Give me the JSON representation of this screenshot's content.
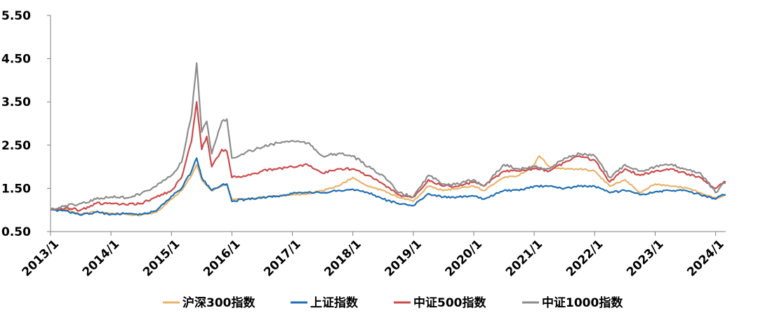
{
  "chart_data": {
    "type": "line",
    "title": "",
    "xlabel": "",
    "ylabel": "",
    "ylim": [
      0.5,
      5.5
    ],
    "xlim": [
      "2013-01",
      "2024-03"
    ],
    "y_ticks": [
      "0.50",
      "1.50",
      "2.50",
      "3.50",
      "4.50",
      "5.50"
    ],
    "x_ticks": [
      "2013/1",
      "2014/1",
      "2015/1",
      "2016/1",
      "2017/1",
      "2018/1",
      "2019/1",
      "2020/1",
      "2021/1",
      "2022/1",
      "2023/1",
      "2024/1"
    ],
    "grid": false,
    "legend_position": "bottom",
    "series": [
      {
        "name": "沪深300指数",
        "color": "#E9B36B",
        "points": [
          [
            "2013-01",
            1.0
          ],
          [
            "2013-04",
            1.02
          ],
          [
            "2013-07",
            0.9
          ],
          [
            "2013-10",
            0.96
          ],
          [
            "2014-01",
            0.92
          ],
          [
            "2014-04",
            0.9
          ],
          [
            "2014-07",
            0.88
          ],
          [
            "2014-10",
            0.95
          ],
          [
            "2015-01",
            1.25
          ],
          [
            "2015-03",
            1.45
          ],
          [
            "2015-05",
            1.8
          ],
          [
            "2015-06",
            2.05
          ],
          [
            "2015-07",
            1.7
          ],
          [
            "2015-09",
            1.45
          ],
          [
            "2015-11",
            1.55
          ],
          [
            "2015-12",
            1.6
          ],
          [
            "2016-01",
            1.25
          ],
          [
            "2016-04",
            1.25
          ],
          [
            "2016-07",
            1.3
          ],
          [
            "2016-10",
            1.32
          ],
          [
            "2017-01",
            1.35
          ],
          [
            "2017-04",
            1.38
          ],
          [
            "2017-07",
            1.45
          ],
          [
            "2017-10",
            1.55
          ],
          [
            "2018-01",
            1.75
          ],
          [
            "2018-04",
            1.55
          ],
          [
            "2018-07",
            1.45
          ],
          [
            "2018-10",
            1.3
          ],
          [
            "2019-01",
            1.2
          ],
          [
            "2019-04",
            1.55
          ],
          [
            "2019-07",
            1.45
          ],
          [
            "2019-10",
            1.5
          ],
          [
            "2020-01",
            1.55
          ],
          [
            "2020-03",
            1.45
          ],
          [
            "2020-07",
            1.75
          ],
          [
            "2020-10",
            1.8
          ],
          [
            "2021-01",
            2.05
          ],
          [
            "2021-02",
            2.25
          ],
          [
            "2021-04",
            2.0
          ],
          [
            "2021-07",
            1.95
          ],
          [
            "2021-10",
            1.95
          ],
          [
            "2022-01",
            1.9
          ],
          [
            "2022-04",
            1.55
          ],
          [
            "2022-07",
            1.7
          ],
          [
            "2022-10",
            1.4
          ],
          [
            "2023-01",
            1.6
          ],
          [
            "2023-04",
            1.55
          ],
          [
            "2023-07",
            1.52
          ],
          [
            "2023-10",
            1.4
          ],
          [
            "2024-01",
            1.28
          ],
          [
            "2024-02",
            1.3
          ],
          [
            "2024-03",
            1.35
          ]
        ]
      },
      {
        "name": "上证指数",
        "color": "#1F6FB4",
        "points": [
          [
            "2013-01",
            1.0
          ],
          [
            "2013-04",
            0.98
          ],
          [
            "2013-07",
            0.88
          ],
          [
            "2013-10",
            0.95
          ],
          [
            "2014-01",
            0.9
          ],
          [
            "2014-04",
            0.92
          ],
          [
            "2014-07",
            0.9
          ],
          [
            "2014-10",
            0.98
          ],
          [
            "2015-01",
            1.32
          ],
          [
            "2015-03",
            1.5
          ],
          [
            "2015-05",
            1.9
          ],
          [
            "2015-06",
            2.2
          ],
          [
            "2015-07",
            1.75
          ],
          [
            "2015-09",
            1.45
          ],
          [
            "2015-11",
            1.58
          ],
          [
            "2015-12",
            1.6
          ],
          [
            "2016-01",
            1.2
          ],
          [
            "2016-04",
            1.25
          ],
          [
            "2016-07",
            1.28
          ],
          [
            "2016-10",
            1.32
          ],
          [
            "2017-01",
            1.38
          ],
          [
            "2017-04",
            1.4
          ],
          [
            "2017-07",
            1.4
          ],
          [
            "2017-10",
            1.45
          ],
          [
            "2018-01",
            1.48
          ],
          [
            "2018-04",
            1.4
          ],
          [
            "2018-07",
            1.25
          ],
          [
            "2018-10",
            1.15
          ],
          [
            "2019-01",
            1.1
          ],
          [
            "2019-04",
            1.38
          ],
          [
            "2019-07",
            1.3
          ],
          [
            "2019-10",
            1.3
          ],
          [
            "2020-01",
            1.32
          ],
          [
            "2020-03",
            1.25
          ],
          [
            "2020-07",
            1.45
          ],
          [
            "2020-10",
            1.45
          ],
          [
            "2021-01",
            1.55
          ],
          [
            "2021-04",
            1.55
          ],
          [
            "2021-07",
            1.5
          ],
          [
            "2021-10",
            1.55
          ],
          [
            "2022-01",
            1.55
          ],
          [
            "2022-04",
            1.4
          ],
          [
            "2022-07",
            1.45
          ],
          [
            "2022-10",
            1.35
          ],
          [
            "2023-01",
            1.42
          ],
          [
            "2023-04",
            1.45
          ],
          [
            "2023-07",
            1.45
          ],
          [
            "2023-10",
            1.35
          ],
          [
            "2024-01",
            1.25
          ],
          [
            "2024-02",
            1.33
          ],
          [
            "2024-03",
            1.35
          ]
        ]
      },
      {
        "name": "中证500指数",
        "color": "#CC4A4A",
        "points": [
          [
            "2013-01",
            1.0
          ],
          [
            "2013-04",
            1.05
          ],
          [
            "2013-07",
            1.0
          ],
          [
            "2013-10",
            1.15
          ],
          [
            "2014-01",
            1.15
          ],
          [
            "2014-04",
            1.12
          ],
          [
            "2014-07",
            1.15
          ],
          [
            "2014-10",
            1.3
          ],
          [
            "2015-01",
            1.45
          ],
          [
            "2015-03",
            1.75
          ],
          [
            "2015-05",
            2.6
          ],
          [
            "2015-06",
            3.5
          ],
          [
            "2015-07",
            2.4
          ],
          [
            "2015-08",
            2.7
          ],
          [
            "2015-09",
            2.0
          ],
          [
            "2015-11",
            2.4
          ],
          [
            "2015-12",
            2.35
          ],
          [
            "2016-01",
            1.75
          ],
          [
            "2016-04",
            1.8
          ],
          [
            "2016-07",
            1.9
          ],
          [
            "2016-10",
            1.95
          ],
          [
            "2017-01",
            2.0
          ],
          [
            "2017-04",
            2.05
          ],
          [
            "2017-07",
            1.85
          ],
          [
            "2017-10",
            1.95
          ],
          [
            "2018-01",
            1.95
          ],
          [
            "2018-04",
            1.8
          ],
          [
            "2018-07",
            1.6
          ],
          [
            "2018-10",
            1.35
          ],
          [
            "2019-01",
            1.3
          ],
          [
            "2019-04",
            1.7
          ],
          [
            "2019-07",
            1.55
          ],
          [
            "2019-10",
            1.55
          ],
          [
            "2020-01",
            1.65
          ],
          [
            "2020-03",
            1.55
          ],
          [
            "2020-07",
            1.9
          ],
          [
            "2020-10",
            1.9
          ],
          [
            "2021-01",
            1.95
          ],
          [
            "2021-04",
            1.9
          ],
          [
            "2021-07",
            2.1
          ],
          [
            "2021-10",
            2.25
          ],
          [
            "2022-01",
            2.15
          ],
          [
            "2022-04",
            1.65
          ],
          [
            "2022-07",
            1.95
          ],
          [
            "2022-10",
            1.8
          ],
          [
            "2023-01",
            1.9
          ],
          [
            "2023-04",
            1.95
          ],
          [
            "2023-07",
            1.85
          ],
          [
            "2023-10",
            1.75
          ],
          [
            "2024-01",
            1.5
          ],
          [
            "2024-02",
            1.6
          ],
          [
            "2024-03",
            1.65
          ]
        ]
      },
      {
        "name": "中证1000指数",
        "color": "#8C8C8C",
        "points": [
          [
            "2013-01",
            1.0
          ],
          [
            "2013-04",
            1.1
          ],
          [
            "2013-07",
            1.15
          ],
          [
            "2013-10",
            1.25
          ],
          [
            "2014-01",
            1.3
          ],
          [
            "2014-04",
            1.28
          ],
          [
            "2014-07",
            1.38
          ],
          [
            "2014-10",
            1.55
          ],
          [
            "2015-01",
            1.8
          ],
          [
            "2015-03",
            2.1
          ],
          [
            "2015-05",
            3.2
          ],
          [
            "2015-06",
            4.4
          ],
          [
            "2015-07",
            2.8
          ],
          [
            "2015-08",
            3.05
          ],
          [
            "2015-09",
            2.3
          ],
          [
            "2015-11",
            3.05
          ],
          [
            "2015-12",
            3.1
          ],
          [
            "2016-01",
            2.2
          ],
          [
            "2016-04",
            2.35
          ],
          [
            "2016-07",
            2.45
          ],
          [
            "2016-10",
            2.55
          ],
          [
            "2017-01",
            2.6
          ],
          [
            "2017-04",
            2.55
          ],
          [
            "2017-07",
            2.25
          ],
          [
            "2017-10",
            2.3
          ],
          [
            "2018-01",
            2.25
          ],
          [
            "2018-04",
            2.0
          ],
          [
            "2018-07",
            1.8
          ],
          [
            "2018-10",
            1.4
          ],
          [
            "2019-01",
            1.3
          ],
          [
            "2019-04",
            1.8
          ],
          [
            "2019-07",
            1.6
          ],
          [
            "2019-10",
            1.6
          ],
          [
            "2020-01",
            1.7
          ],
          [
            "2020-03",
            1.55
          ],
          [
            "2020-07",
            2.05
          ],
          [
            "2020-10",
            1.95
          ],
          [
            "2021-01",
            2.0
          ],
          [
            "2021-04",
            1.95
          ],
          [
            "2021-07",
            2.2
          ],
          [
            "2021-10",
            2.3
          ],
          [
            "2022-01",
            2.25
          ],
          [
            "2022-04",
            1.75
          ],
          [
            "2022-07",
            2.05
          ],
          [
            "2022-10",
            1.9
          ],
          [
            "2023-01",
            2.0
          ],
          [
            "2023-04",
            2.05
          ],
          [
            "2023-07",
            1.95
          ],
          [
            "2023-10",
            1.85
          ],
          [
            "2024-01",
            1.4
          ],
          [
            "2024-02",
            1.55
          ],
          [
            "2024-03",
            1.62
          ]
        ]
      }
    ]
  }
}
